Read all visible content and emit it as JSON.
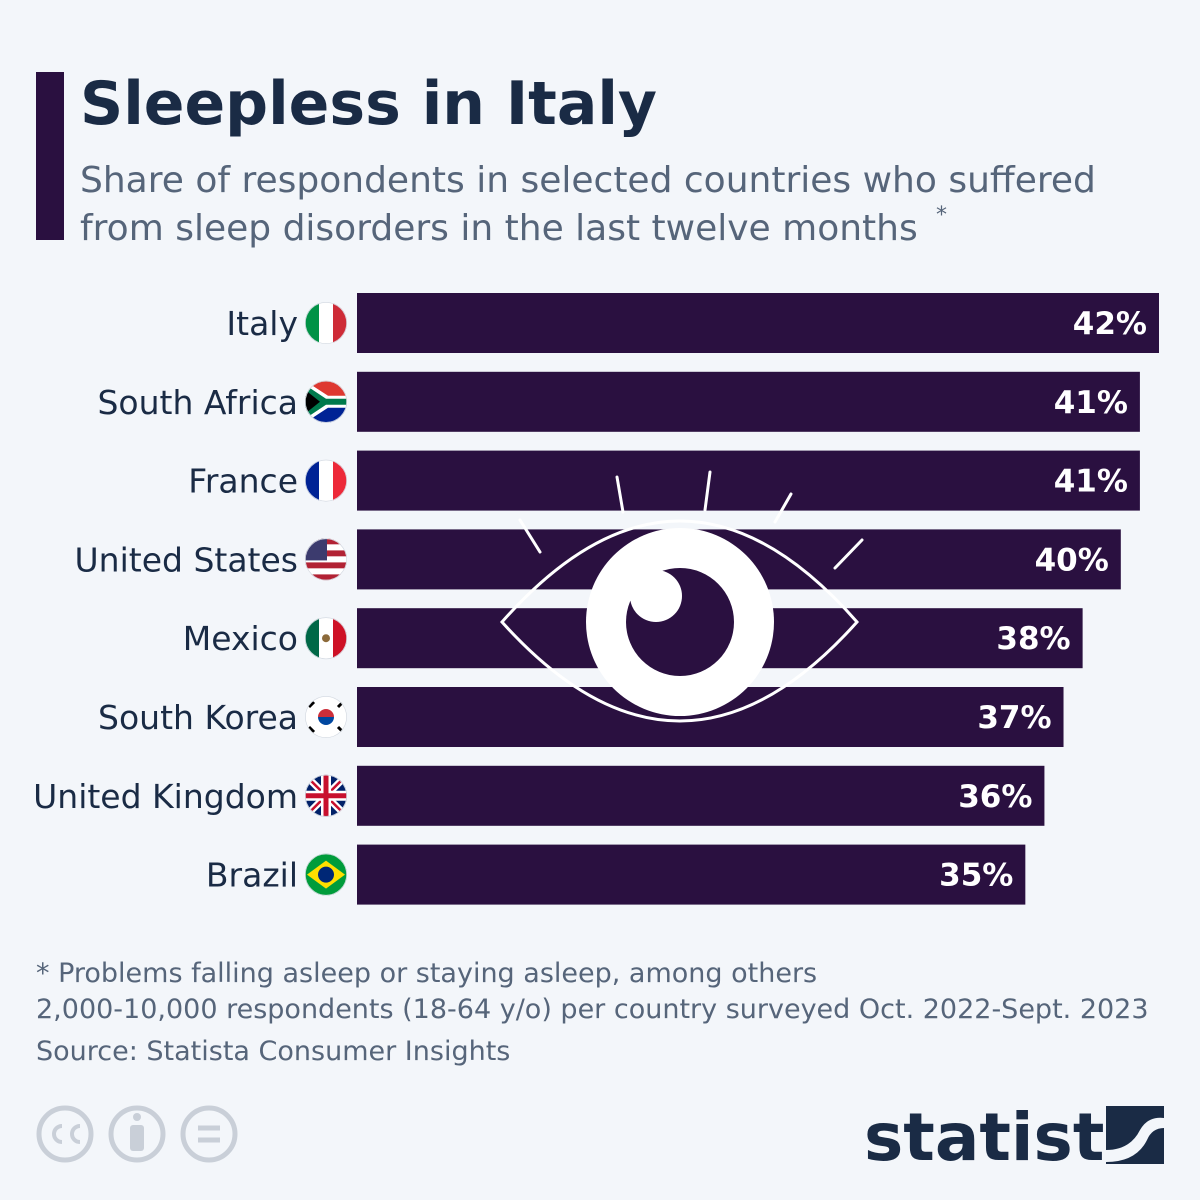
{
  "chart_data": {
    "type": "bar",
    "orientation": "horizontal",
    "title": "Sleepless in Italy",
    "subtitle": [
      "Share of respondents in selected countries who suffered",
      "from sleep disorders in the last twelve months"
    ],
    "subtitle_note": "*",
    "categories": [
      "Italy",
      "South Africa",
      "France",
      "United States",
      "Mexico",
      "South Korea",
      "United Kingdom",
      "Brazil"
    ],
    "values": [
      42,
      41,
      41,
      40,
      38,
      37,
      36,
      35
    ],
    "value_labels": [
      "42%",
      "41%",
      "41%",
      "40%",
      "38%",
      "37%",
      "36%",
      "35%"
    ],
    "color": "#2a1040",
    "notes": [
      "* Problems falling asleep or staying asleep, among others",
      "2,000-10,000 respondents (18-64 y/o) per country surveyed Oct. 2022-Sept. 2023"
    ],
    "source": "Source: Statista Consumer Insights",
    "brand": "statista"
  }
}
